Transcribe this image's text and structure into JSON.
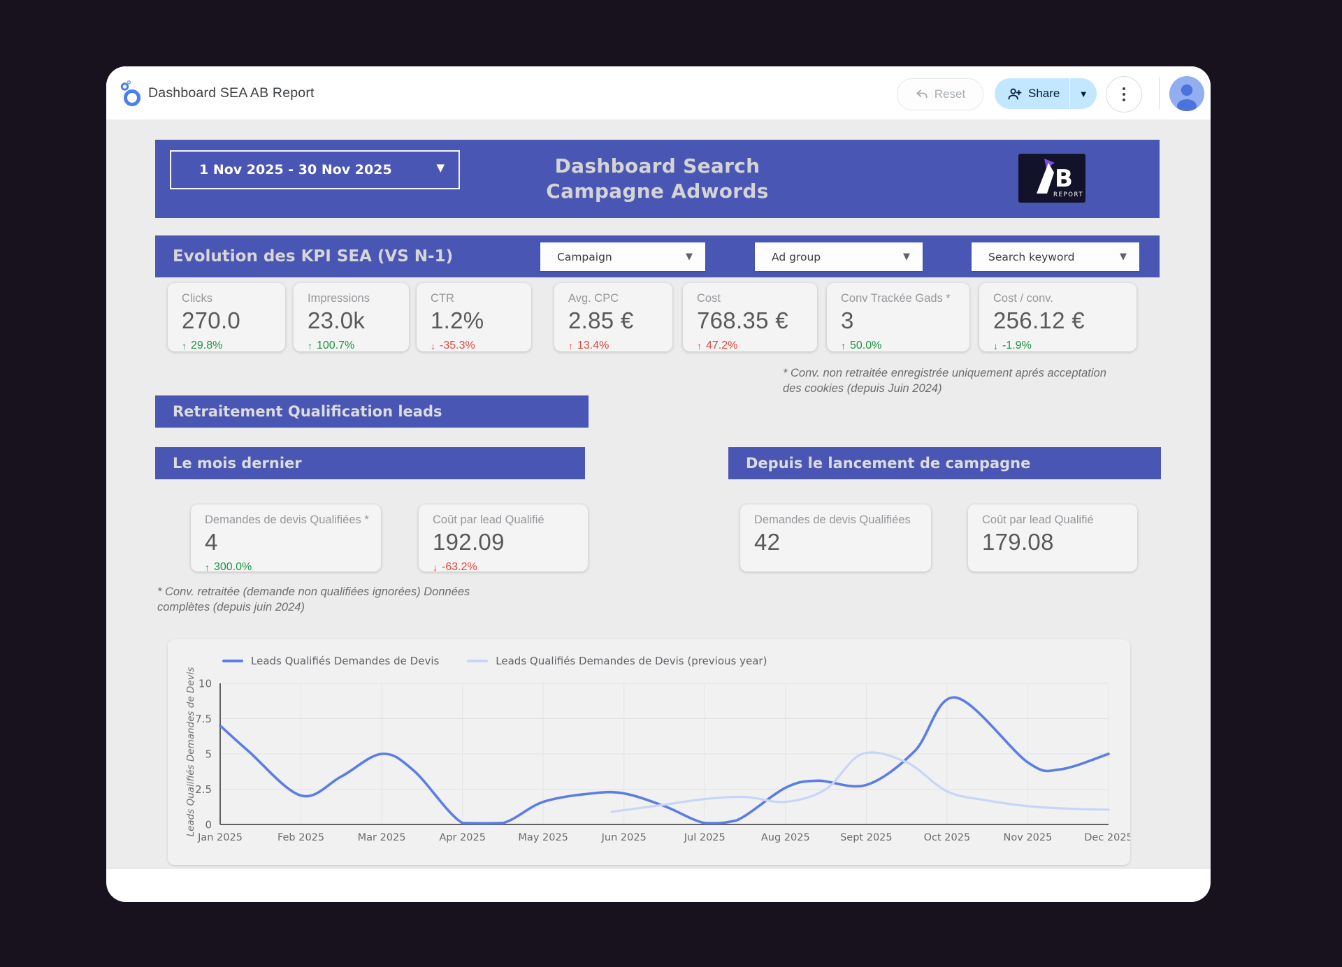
{
  "header": {
    "title": "Dashboard SEA AB Report",
    "reset_label": "Reset",
    "share_label": "Share"
  },
  "banner": {
    "date_range": "1 Nov 2025 - 30 Nov 2025",
    "title_line1": "Dashboard Search",
    "title_line2": "Campagne Adwords",
    "logo_letter_b": "B",
    "logo_text_report": "REPORT"
  },
  "filters": {
    "section_title": "Evolution des KPI SEA (VS N-1)",
    "campaign": "Campaign",
    "ad_group": "Ad group",
    "search_keyword": "Search keyword"
  },
  "kpi_cards": [
    {
      "label": "Clicks",
      "value": "270.0",
      "delta": "29.8%",
      "direction": "up",
      "sentiment": "good"
    },
    {
      "label": "Impressions",
      "value": "23.0k",
      "delta": "100.7%",
      "direction": "up",
      "sentiment": "good"
    },
    {
      "label": "CTR",
      "value": "1.2%",
      "delta": "-35.3%",
      "direction": "down",
      "sentiment": "bad"
    },
    {
      "label": "Avg. CPC",
      "value": "2.85 €",
      "delta": "13.4%",
      "direction": "up",
      "sentiment": "bad"
    },
    {
      "label": "Cost",
      "value": "768.35 €",
      "delta": "47.2%",
      "direction": "up",
      "sentiment": "bad"
    },
    {
      "label": "Conv Trackée Gads *",
      "value": "3",
      "delta": "50.0%",
      "direction": "up",
      "sentiment": "good"
    },
    {
      "label": "Cost / conv.",
      "value": "256.12 €",
      "delta": "-1.9%",
      "direction": "down",
      "sentiment": "good"
    }
  ],
  "notes": {
    "cookies_line1": "* Conv. non retraitée enregistrée uniquement aprés acceptation",
    "cookies_line2": "des cookies (depuis Juin 2024)",
    "retraitee_line1": "* Conv. retraitée (demande non qualifiées ignorées) Données",
    "retraitee_line2": "complètes (depuis juin 2024)"
  },
  "sections": {
    "retraitement": "Retraitement Qualification leads",
    "last_month": "Le mois dernier",
    "since_launch": "Depuis le lancement de campagne"
  },
  "lead_cards": [
    {
      "label": "Demandes de devis Qualifiées *",
      "value": "4",
      "delta": "300.0%",
      "direction": "up",
      "sentiment": "good"
    },
    {
      "label": "Coût par lead Qualifié",
      "value": "192.09",
      "delta": "-63.2%",
      "direction": "down",
      "sentiment": "bad"
    },
    {
      "label": "Demandes de devis Qualifiées",
      "value": "42"
    },
    {
      "label": "Coût par lead Qualifié",
      "value": "179.08"
    }
  ],
  "colors": {
    "page_background": "#18121f",
    "banner_blue": "#4a56b4",
    "share_button_bg": "#c2e7ff",
    "share_button_text": "#001d35",
    "positive_green": "#1e9445",
    "negative_red": "#e5473c",
    "value_grey": "#595959",
    "label_grey": "#95989c",
    "line_current_year": "#5b7ee4",
    "line_previous_year": "#c7d6f7"
  },
  "chart_data": {
    "type": "line",
    "title": "",
    "ylabel": "Leads Qualifiés Demandes de Devis",
    "xlabel": "",
    "x_tick_labels": [
      "Jan 2025",
      "Feb 2025",
      "Mar 2025",
      "Apr 2025",
      "May 2025",
      "Jun 2025",
      "Jul 2025",
      "Aug 2025",
      "Sept 2025",
      "Oct 2025",
      "Nov 2025",
      "Dec 2025"
    ],
    "y_ticks": [
      0,
      2.5,
      5,
      7.5,
      10
    ],
    "ylim": [
      0,
      10
    ],
    "grid": true,
    "legend_position": "top-left",
    "series": [
      {
        "name": "Leads Qualifiés Demandes de Devis",
        "color": "#5b7ee4",
        "monthly_values": {
          "Jan": 7,
          "Feb": 2,
          "Mar": 5,
          "Apr": 0,
          "May": 2,
          "Jun": 2.2,
          "Jul": 0,
          "Aug": 2.7,
          "Sep": 2.8,
          "Oct": 9,
          "Nov": 4.2,
          "Dec": 5
        },
        "points": [
          [
            0,
            7
          ],
          [
            0.35,
            5.2
          ],
          [
            1,
            2.05
          ],
          [
            1.5,
            3.4
          ],
          [
            2,
            5
          ],
          [
            2.4,
            3.8
          ],
          [
            3,
            0.1
          ],
          [
            3.5,
            0.1
          ],
          [
            4,
            1.6
          ],
          [
            4.6,
            2.2
          ],
          [
            5,
            2.2
          ],
          [
            5.5,
            1.3
          ],
          [
            6,
            0.1
          ],
          [
            6.4,
            0.3
          ],
          [
            7,
            2.6
          ],
          [
            7.4,
            3.1
          ],
          [
            8,
            2.8
          ],
          [
            8.6,
            5.2
          ],
          [
            9.1,
            9
          ],
          [
            10,
            4.4
          ],
          [
            10.4,
            3.9
          ],
          [
            11,
            5
          ]
        ]
      },
      {
        "name": "Leads Qualifiés Demandes de Devis (previous year)",
        "color": "#c7d6f7",
        "monthly_values": {
          "Jun": 1.0,
          "Jul": 1.8,
          "Aug": 1.6,
          "Sep": 5.0,
          "Oct": 2.3,
          "Nov": 1.3,
          "Dec": 1.05
        },
        "points": [
          [
            4.85,
            0.9
          ],
          [
            5.5,
            1.4
          ],
          [
            6,
            1.8
          ],
          [
            6.5,
            1.95
          ],
          [
            7,
            1.6
          ],
          [
            7.5,
            2.5
          ],
          [
            7.95,
            5
          ],
          [
            8.5,
            4.4
          ],
          [
            9,
            2.35
          ],
          [
            9.5,
            1.7
          ],
          [
            10,
            1.3
          ],
          [
            10.5,
            1.12
          ],
          [
            11,
            1.05
          ]
        ]
      }
    ]
  }
}
